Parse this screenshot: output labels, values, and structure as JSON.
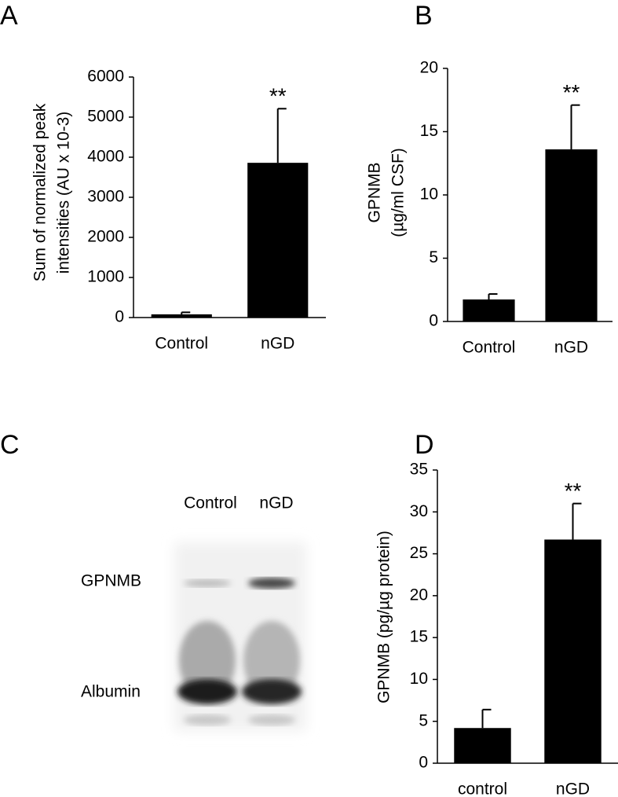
{
  "chart_data": [
    {
      "type": "bar",
      "panel": "A",
      "ylabel": [
        "Sum of normalized peak",
        "intensities (AU x 10-3)"
      ],
      "categories": [
        "Control",
        "nGD"
      ],
      "values": [
        80,
        3860
      ],
      "errors": [
        50,
        1350
      ],
      "color": "#000000",
      "ylim": [
        0,
        6000
      ],
      "yticks": [
        0,
        1000,
        2000,
        3000,
        4000,
        5000,
        6000
      ],
      "annotations": [
        "**"
      ]
    },
    {
      "type": "bar",
      "panel": "B",
      "ylabel": [
        "GPNMB",
        "(µg/ml CSF)"
      ],
      "categories": [
        "Control",
        "nGD"
      ],
      "values": [
        1.74,
        13.6
      ],
      "errors": [
        0.43,
        3.5
      ],
      "color": "#000000",
      "ylim": [
        0,
        20
      ],
      "yticks": [
        0,
        5,
        10,
        15,
        20
      ],
      "annotations": [
        "**"
      ]
    },
    {
      "type": "blot",
      "panel": "C",
      "lanes": [
        "Control",
        "nGD"
      ],
      "bands": [
        "GPNMB",
        "Albumin"
      ]
    },
    {
      "type": "bar",
      "panel": "D",
      "ylabel": [
        "GPNMB (pg/µg protein)"
      ],
      "categories": [
        "control",
        "nGD"
      ],
      "values": [
        4.2,
        26.7
      ],
      "errors": [
        2.2,
        4.3
      ],
      "color": "#000000",
      "ylim": [
        0,
        35
      ],
      "yticks": [
        0,
        5,
        10,
        15,
        20,
        25,
        30,
        35
      ],
      "annotations": [
        "**"
      ]
    }
  ]
}
